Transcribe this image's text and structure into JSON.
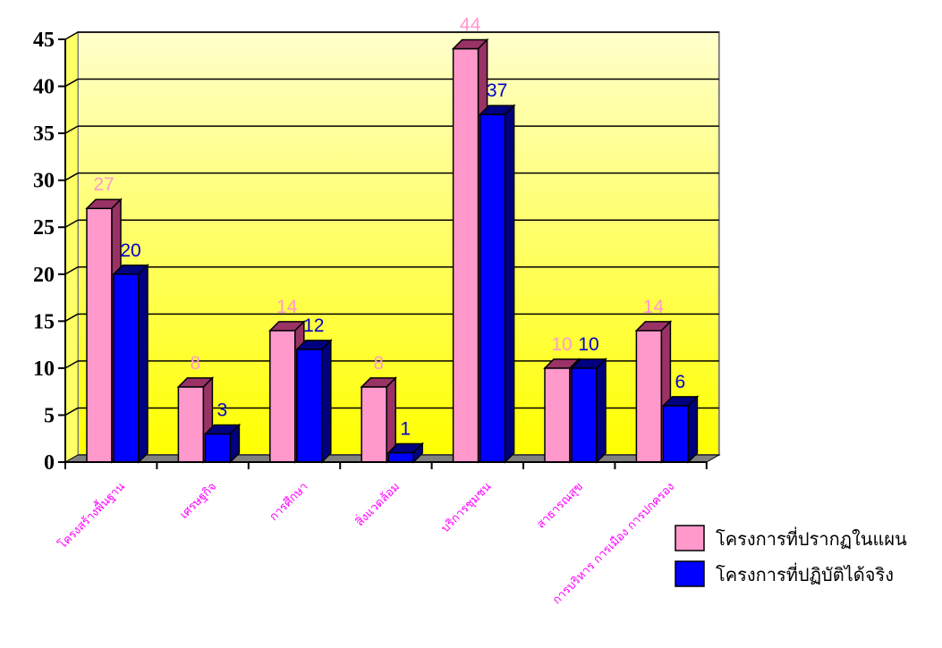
{
  "chart_data": {
    "type": "bar",
    "categories": [
      "โครงสร้างพื้นฐาน",
      "เศรษฐกิจ",
      "การศึกษา",
      "สิ่งแวดล้อม",
      "บริการชุมชน",
      "สาธารณสุข",
      "การบริหาร การเมือง การปกครอง"
    ],
    "series": [
      {
        "name": "โครงการที่ปรากฏในแผน",
        "values": [
          27,
          8,
          14,
          8,
          44,
          10,
          14
        ],
        "color": "#ff99cc",
        "side": "#993366",
        "label_color": "#ff99cc"
      },
      {
        "name": "โครงการที่ปฏิบัติได้จริง",
        "values": [
          20,
          3,
          12,
          1,
          37,
          10,
          6
        ],
        "color": "#0000ff",
        "side": "#000080",
        "label_color": "#0000cc"
      }
    ],
    "ylim": [
      0,
      45
    ],
    "yticks": [
      "0",
      "5",
      "10",
      "15",
      "20",
      "25",
      "30",
      "35",
      "40",
      "45"
    ],
    "grid": true,
    "legend_position": "bottom-right",
    "plot_background": "#ffff99",
    "title": "",
    "xlabel": "",
    "ylabel": ""
  }
}
